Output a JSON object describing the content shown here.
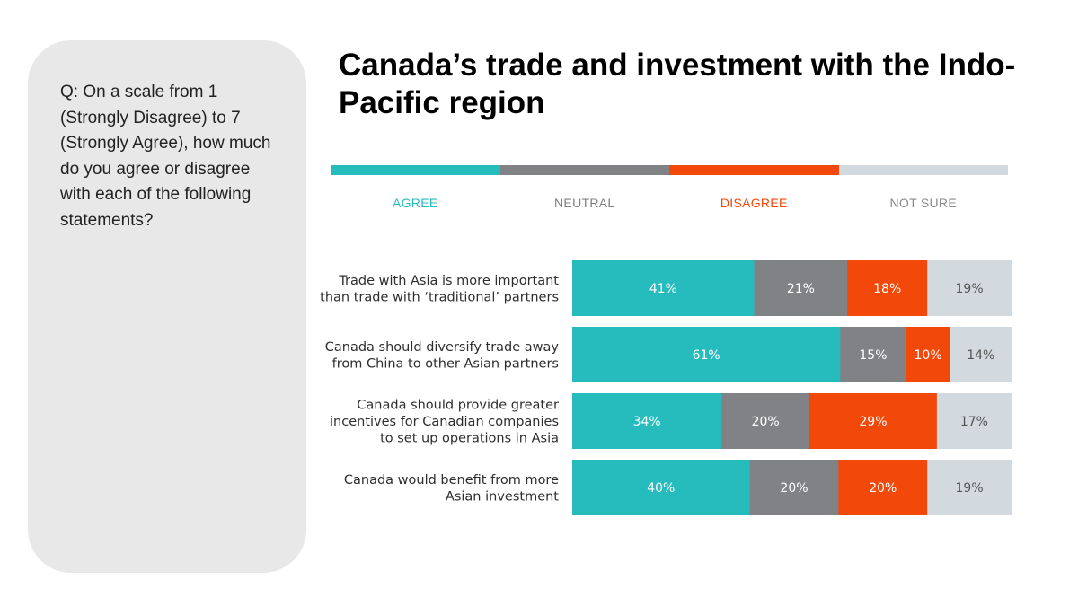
{
  "question": "Q: On a scale from 1 (Strongly Disagree) to 7 (Strongly Agree), how much do you agree or disagree with each of the following statements?",
  "title": "Canada’s trade and investment with the Indo-Pacific region",
  "colors": {
    "agree": "#26bcbd",
    "neutral": "#818285",
    "disagree": "#f2480a",
    "not_sure": "#d2dadf",
    "panel": "#e8e8e8"
  },
  "chart_data": {
    "type": "bar",
    "orientation": "horizontal-stacked-100",
    "legend_placement": "top",
    "series": [
      {
        "name": "AGREE",
        "values": [
          41,
          61,
          34,
          40
        ]
      },
      {
        "name": "NEUTRAL",
        "values": [
          21,
          15,
          20,
          20
        ]
      },
      {
        "name": "DISAGREE",
        "values": [
          18,
          10,
          29,
          20
        ]
      },
      {
        "name": "NOT SURE",
        "values": [
          19,
          14,
          17,
          19
        ]
      }
    ],
    "categories": [
      [
        "Trade with Asia is more important",
        "than trade with ‘traditional’ partners"
      ],
      [
        "Canada should diversify trade away",
        "from China to other Asian partners"
      ],
      [
        "Canada should provide greater",
        "incentives for Canadian companies",
        "to set up operations in Asia"
      ],
      [
        "Canada would benefit from more",
        "Asian investment"
      ]
    ],
    "value_suffix": "%"
  }
}
